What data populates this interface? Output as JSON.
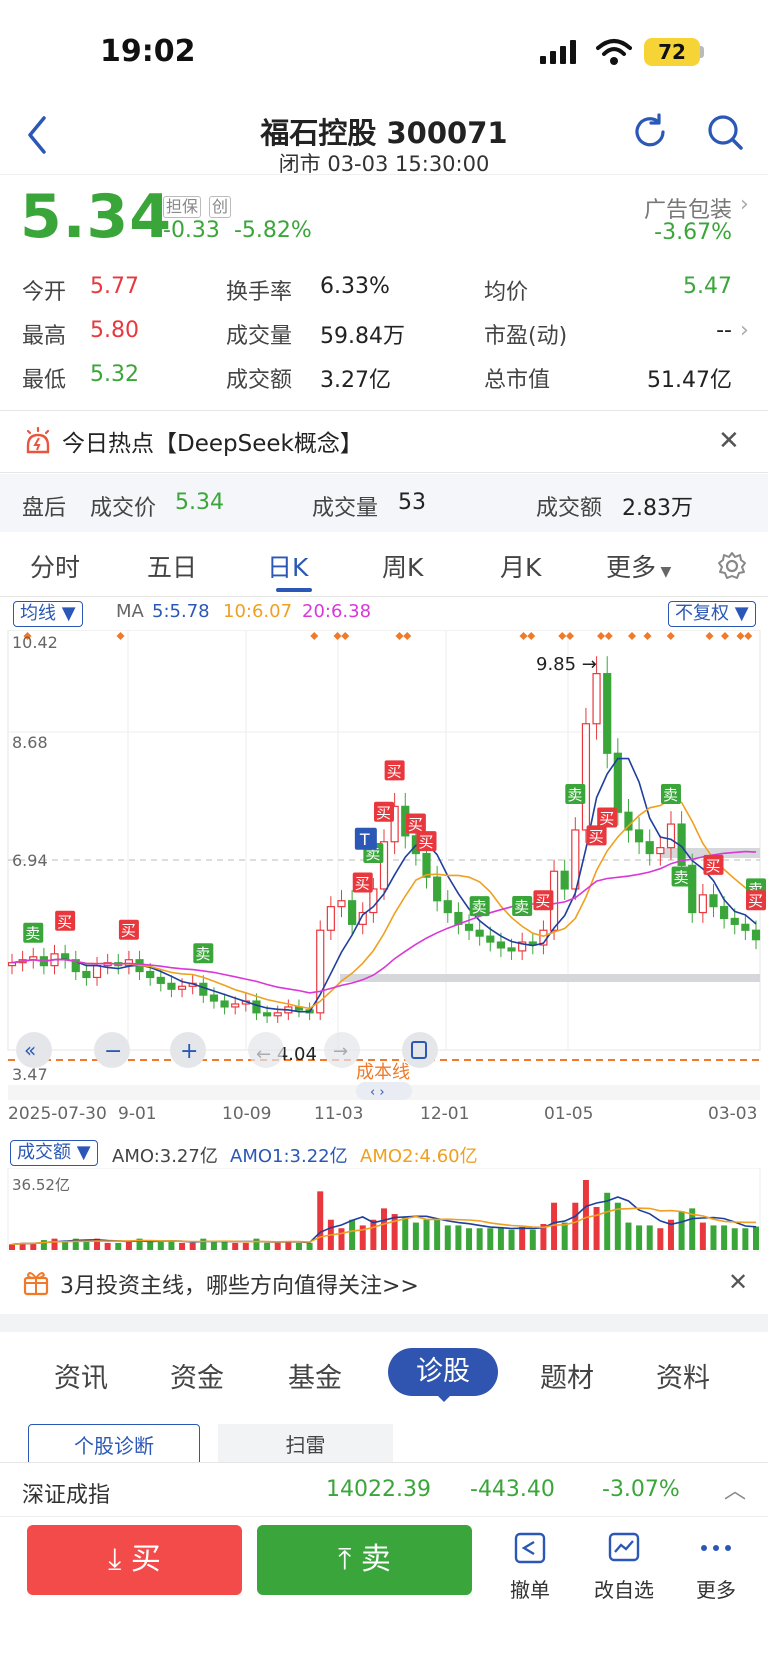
{
  "status": {
    "time": "19:02",
    "battery": "72"
  },
  "header": {
    "title": "福石控股 300071",
    "subtitle": "闭市 03-03 15:30:00"
  },
  "quote": {
    "price": "5.34",
    "tag1": "担保",
    "tag2": "创",
    "change": "-0.33",
    "change_pct": "-5.82%",
    "sector_name": "广告包装",
    "sector_pct": "-3.67%"
  },
  "stats": {
    "open_label": "今开",
    "open": "5.77",
    "high_label": "最高",
    "high": "5.80",
    "low_label": "最低",
    "low": "5.32",
    "turnover_label": "换手率",
    "turnover": "6.33%",
    "volume_label": "成交量",
    "volume": "59.84万",
    "amount_label": "成交额",
    "amount": "3.27亿",
    "avg_label": "均价",
    "avg": "5.47",
    "pe_label": "市盈(动)",
    "pe": "--",
    "mcap_label": "总市值",
    "mcap": "51.47亿"
  },
  "hot": {
    "text": "今日热点【DeepSeek概念】"
  },
  "after_hours": {
    "label": "盘后",
    "price_label": "成交价",
    "price": "5.34",
    "vol_label": "成交量",
    "vol": "53",
    "amt_label": "成交额",
    "amt": "2.83万"
  },
  "ktabs": [
    "分时",
    "五日",
    "日K",
    "周K",
    "月K",
    "更多"
  ],
  "indicator": {
    "ma_select": "均线",
    "ma_label": "MA",
    "ma5": "5:5.78",
    "ma10": "10:6.07",
    "ma20": "20:6.38",
    "adjust": "不复权"
  },
  "chart_data": {
    "type": "candlestick",
    "price_axis": [
      "10.42",
      "8.68",
      "6.94",
      "3.47"
    ],
    "date_axis": [
      "2025-07-30",
      "9-01",
      "10-09",
      "11-03",
      "12-01",
      "01-05",
      "03-03"
    ],
    "max_label": "9.85",
    "min_label": "4.04",
    "cost_line_label": "成本线",
    "buy_mark": "买",
    "sell_mark": "卖",
    "t_mark": "T",
    "close_series": [
      4.95,
      5.0,
      5.05,
      4.9,
      5.1,
      5.0,
      4.8,
      4.7,
      4.9,
      4.95,
      4.9,
      5.0,
      4.8,
      4.7,
      4.6,
      4.5,
      4.55,
      4.6,
      4.4,
      4.3,
      4.2,
      4.25,
      4.3,
      4.1,
      4.05,
      4.1,
      4.2,
      4.15,
      4.1,
      5.5,
      5.9,
      6.0,
      5.6,
      5.8,
      6.2,
      7.0,
      7.6,
      7.1,
      6.8,
      6.4,
      6.0,
      5.8,
      5.6,
      5.5,
      5.4,
      5.3,
      5.2,
      5.15,
      5.3,
      5.25,
      5.5,
      6.5,
      6.2,
      7.2,
      9.0,
      9.85,
      8.5,
      7.5,
      7.2,
      7.0,
      6.8,
      6.9,
      7.3,
      6.6,
      5.8,
      6.1,
      5.9,
      5.7,
      5.6,
      5.5,
      5.34
    ]
  },
  "volume": {
    "select": "成交额",
    "amo": "AMO:3.27亿",
    "amo1": "AMO1:3.22亿",
    "amo2": "AMO2:4.60亿",
    "max_label": "36.52亿"
  },
  "promo": {
    "text": "3月投资主线，哪些方向值得关注>>"
  },
  "bottom_tabs": [
    "资讯",
    "资金",
    "基金",
    "诊股",
    "题材",
    "资料"
  ],
  "sub_tabs": [
    "个股诊断",
    "扫雷"
  ],
  "index": {
    "name": "深证成指",
    "value": "14022.39",
    "change": "-443.40",
    "pct": "-3.07%"
  },
  "trade": {
    "buy": "买",
    "sell": "卖",
    "cancel": "撤单",
    "watch": "改自选",
    "more": "更多"
  }
}
